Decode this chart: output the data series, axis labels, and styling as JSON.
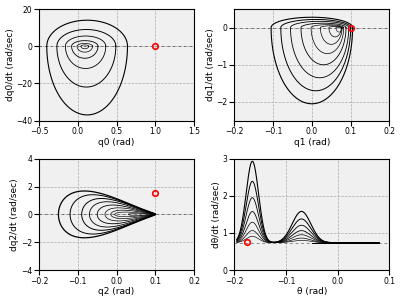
{
  "subplots": [
    {
      "xlabel": "q0 (rad)",
      "ylabel": "dq0/dt (rad/sec)",
      "xlim": [
        -0.5,
        1.5
      ],
      "ylim": [
        -40,
        20
      ],
      "xticks": [
        -0.5,
        0.0,
        0.5,
        1.0,
        1.5
      ],
      "yticks": [
        -40,
        -20,
        0,
        20
      ],
      "red_dot": [
        1.0,
        0.0
      ]
    },
    {
      "xlabel": "q1 (rad)",
      "ylabel": "dq1/dt (rad/sec)",
      "xlim": [
        -0.2,
        0.2
      ],
      "ylim": [
        -2.5,
        0.5
      ],
      "xticks": [
        -0.2,
        -0.1,
        0.0,
        0.1,
        0.2
      ],
      "yticks": [
        -2,
        -1,
        0
      ],
      "red_dot": [
        0.1,
        0.0
      ]
    },
    {
      "xlabel": "q2 (rad)",
      "ylabel": "dq2/dt (rad/sec)",
      "xlim": [
        -0.2,
        0.2
      ],
      "ylim": [
        -4,
        4
      ],
      "xticks": [
        -0.2,
        -0.1,
        0.0,
        0.1,
        0.2
      ],
      "yticks": [
        -4,
        -2,
        0,
        2,
        4
      ],
      "red_dot": [
        0.1,
        1.5
      ]
    },
    {
      "xlabel": "θ (rad)",
      "ylabel": "dθ/dt (rad/sec)",
      "xlim": [
        -0.2,
        0.1
      ],
      "ylim": [
        0,
        3
      ],
      "xticks": [
        -0.2,
        -0.1,
        0.0,
        0.1
      ],
      "yticks": [
        0,
        1,
        2,
        3
      ],
      "red_dot": [
        -0.175,
        0.75
      ]
    }
  ],
  "background_color": "#f0f0f0",
  "grid_color": "#aaaaaa"
}
